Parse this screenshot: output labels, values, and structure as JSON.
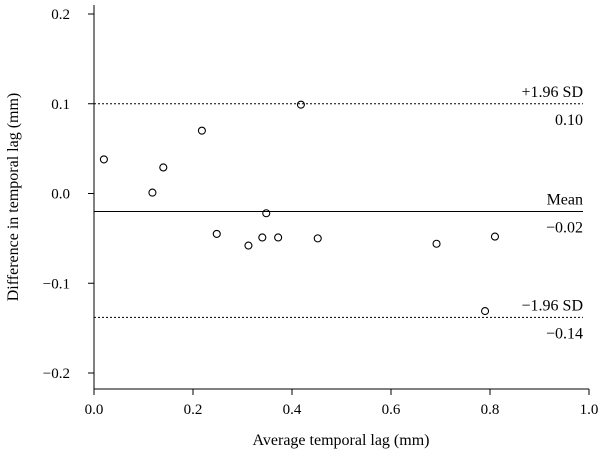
{
  "chart_data": {
    "type": "scatter",
    "title": "",
    "xlabel": "Average temporal lag (mm)",
    "ylabel": "Difference in temporal lag (mm)",
    "xlim": [
      0.0,
      1.0
    ],
    "ylim": [
      -0.2,
      0.2
    ],
    "x_ticks": [
      "0.0",
      "0.2",
      "0.4",
      "0.6",
      "0.8",
      "1.0"
    ],
    "y_ticks": [
      "0.2",
      "0.1",
      "0.0",
      "-0.1",
      "-0.2"
    ],
    "grid": false,
    "points": [
      {
        "x": 0.02,
        "y": 0.038
      },
      {
        "x": 0.118,
        "y": 0.001
      },
      {
        "x": 0.14,
        "y": 0.029
      },
      {
        "x": 0.218,
        "y": 0.07
      },
      {
        "x": 0.248,
        "y": -0.045
      },
      {
        "x": 0.312,
        "y": -0.058
      },
      {
        "x": 0.34,
        "y": -0.049
      },
      {
        "x": 0.348,
        "y": -0.022
      },
      {
        "x": 0.372,
        "y": -0.049
      },
      {
        "x": 0.418,
        "y": 0.099
      },
      {
        "x": 0.452,
        "y": -0.05
      },
      {
        "x": 0.692,
        "y": -0.056
      },
      {
        "x": 0.79,
        "y": -0.131
      },
      {
        "x": 0.81,
        "y": -0.048
      }
    ],
    "reference_lines": [
      {
        "name": "+1.96 SD",
        "value": 0.1,
        "value_label": "0.10",
        "style": "dotted"
      },
      {
        "name": "Mean",
        "value": -0.02,
        "value_label": "−0.02",
        "style": "solid"
      },
      {
        "name": "−1.96 SD",
        "value": -0.138,
        "value_label": "−0.14",
        "style": "dotted"
      }
    ]
  }
}
